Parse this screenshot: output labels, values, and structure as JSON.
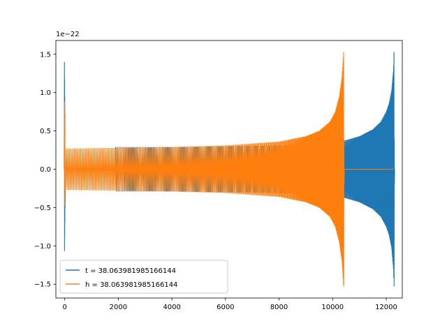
{
  "chart_data": {
    "type": "line",
    "offset_text": "1e−22",
    "xlim": [
      -330,
      12600
    ],
    "ylim": [
      -1.68,
      1.68
    ],
    "xticks": [
      0,
      2000,
      4000,
      6000,
      8000,
      10000,
      12000
    ],
    "xtick_labels": [
      "0",
      "2000",
      "4000",
      "6000",
      "8000",
      "10000",
      "12000"
    ],
    "yticks": [
      -1.5,
      -1.0,
      -0.5,
      0.0,
      0.5,
      1.0,
      1.5
    ],
    "ytick_labels": [
      "−1.5",
      "−1.0",
      "−0.5",
      "0.0",
      "0.5",
      "1.0",
      "1.5"
    ],
    "legend_position": "lower-left",
    "series": [
      {
        "name": "t = 38.063981985166144",
        "color": "#1f77b4",
        "start_spike": {
          "x": 0,
          "max": 1.4,
          "min": -1.16
        },
        "flat_until": 1900,
        "chirp_start": 1900,
        "merger": 12290,
        "merger_peak": 1.53,
        "merger_trough": -1.53,
        "envelope_x": [
          1900,
          4000,
          6000,
          8000,
          10000,
          10500,
          11000,
          11500,
          11800,
          12000,
          12100,
          12200,
          12270,
          12290
        ],
        "envelope_y": [
          0.29,
          0.29,
          0.3,
          0.31,
          0.33,
          0.38,
          0.43,
          0.52,
          0.62,
          0.75,
          0.85,
          1.02,
          1.3,
          1.53
        ],
        "post_merger_value": 0.0
      },
      {
        "name": "h = 38.063981985166144",
        "color": "#ff7f0e",
        "start_spike": {
          "x": 0,
          "max": 0.88,
          "min": -0.52
        },
        "flat_until": 0,
        "chirp_start": 0,
        "merger": 10410,
        "merger_peak": 1.53,
        "merger_trough": -1.53,
        "envelope_x": [
          0,
          2000,
          4000,
          6000,
          8000,
          9000,
          9500,
          9900,
          10100,
          10250,
          10350,
          10400,
          10410
        ],
        "envelope_y": [
          0.27,
          0.28,
          0.29,
          0.31,
          0.36,
          0.43,
          0.5,
          0.62,
          0.75,
          0.95,
          1.2,
          1.45,
          1.53
        ],
        "post_merger_value": 0.0
      }
    ]
  }
}
